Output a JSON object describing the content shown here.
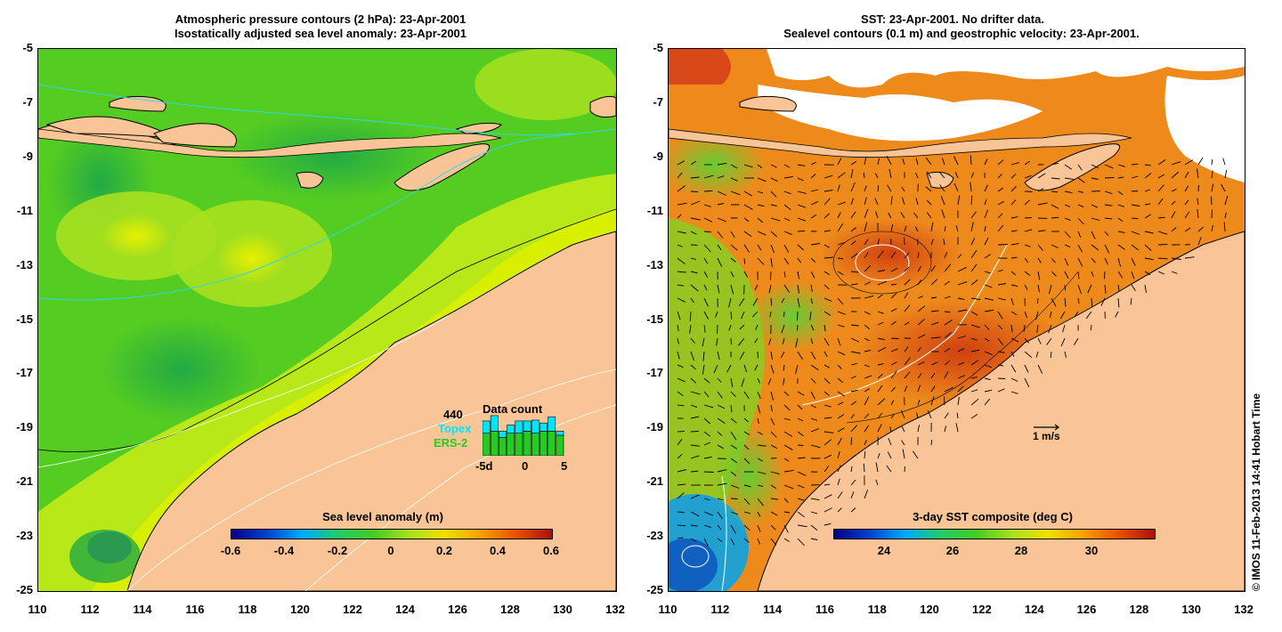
{
  "left": {
    "title_line1": "Atmospheric pressure contours (2 hPa): 23-Apr-2001",
    "title_line2": "Isostatically adjusted sea level anomaly: 23-Apr-2001",
    "colorbar": {
      "label": "Sea level anomaly (m)",
      "ticks": [
        "-0.6",
        "-0.4",
        "-0.2",
        "0",
        "0.2",
        "0.4",
        "0.6"
      ]
    },
    "data_count": {
      "title": "Data count",
      "max_value": "440",
      "topex_label": "Topex",
      "ers2_label": "ERS-2",
      "x_ticks": [
        "-5d",
        "0",
        "5"
      ],
      "topex_color": "#00e5ff",
      "ers2_color": "#22cc22",
      "bars_ers2": [
        0.55,
        0.6,
        0.45,
        0.55,
        0.55,
        0.6,
        0.55,
        0.6,
        0.6,
        0.5
      ],
      "bars_topex": [
        0.3,
        0.38,
        0.15,
        0.2,
        0.3,
        0.25,
        0.32,
        0.2,
        0.35,
        0.1
      ]
    }
  },
  "right": {
    "title_line1": "SST: 23-Apr-2001. No drifter data.",
    "title_line2": "Sealevel contours (0.1 m) and geostrophic velocity: 23-Apr-2001.",
    "colorbar": {
      "label": "3-day SST composite (deg C)",
      "ticks": [
        "24",
        "26",
        "28",
        "30"
      ]
    },
    "scale_label": "1 m/s"
  },
  "axes": {
    "y_ticks": [
      "-5",
      "-7",
      "-9",
      "-11",
      "-13",
      "-15",
      "-17",
      "-19",
      "-21",
      "-23",
      "-25"
    ],
    "x_ticks": [
      "110",
      "112",
      "114",
      "116",
      "118",
      "120",
      "122",
      "124",
      "126",
      "128",
      "130",
      "132"
    ]
  },
  "credit": "© IMOS 11-Feb-2013 14:41 Hobart Time",
  "colors": {
    "land": "#fac596",
    "ocean_green": "#44cc22",
    "ocean_yellow": "#d8f000",
    "sst_orange": "#f08a1a"
  }
}
